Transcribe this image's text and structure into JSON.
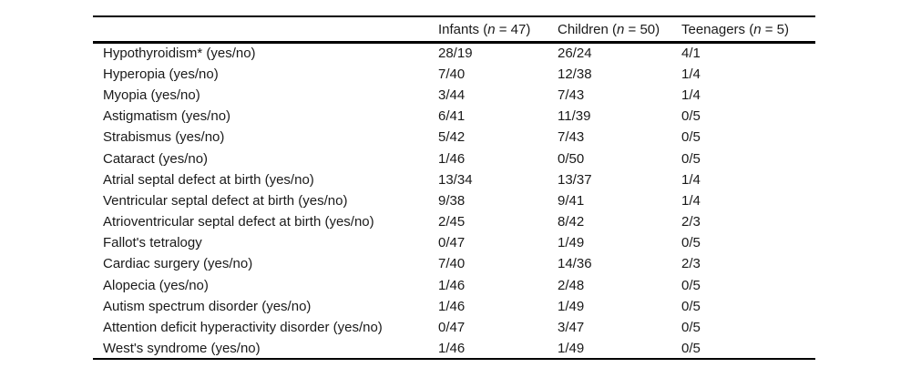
{
  "table": {
    "header": [
      {
        "pre": "Infants (",
        "italic": "n",
        "post": " = 47)"
      },
      {
        "pre": "Children (",
        "italic": "n",
        "post": " = 50)"
      },
      {
        "pre": "Teenagers (",
        "italic": "n",
        "post": " = 5)"
      }
    ],
    "rows": [
      {
        "label": "Hypothyroidism* (yes/no)",
        "infants": "28/19",
        "children": "26/24",
        "teenagers": "4/1"
      },
      {
        "label": "Hyperopia (yes/no)",
        "infants": "7/40",
        "children": "12/38",
        "teenagers": "1/4"
      },
      {
        "label": "Myopia (yes/no)",
        "infants": "3/44",
        "children": "7/43",
        "teenagers": "1/4"
      },
      {
        "label": "Astigmatism (yes/no)",
        "infants": "6/41",
        "children": "11/39",
        "teenagers": "0/5"
      },
      {
        "label": "Strabismus (yes/no)",
        "infants": "5/42",
        "children": "7/43",
        "teenagers": "0/5"
      },
      {
        "label": "Cataract (yes/no)",
        "infants": "1/46",
        "children": "0/50",
        "teenagers": "0/5"
      },
      {
        "label": "Atrial septal defect at birth (yes/no)",
        "infants": "13/34",
        "children": "13/37",
        "teenagers": "1/4"
      },
      {
        "label": "Ventricular septal defect at birth (yes/no)",
        "infants": "9/38",
        "children": "9/41",
        "teenagers": "1/4"
      },
      {
        "label": "Atrioventricular septal defect at birth (yes/no)",
        "infants": "2/45",
        "children": "8/42",
        "teenagers": "2/3"
      },
      {
        "label": "Fallot's tetralogy",
        "infants": "0/47",
        "children": "1/49",
        "teenagers": "0/5"
      },
      {
        "label": "Cardiac surgery (yes/no)",
        "infants": "7/40",
        "children": "14/36",
        "teenagers": "2/3"
      },
      {
        "label": "Alopecia (yes/no)",
        "infants": "1/46",
        "children": "2/48",
        "teenagers": "0/5"
      },
      {
        "label": "Autism spectrum disorder (yes/no)",
        "infants": "1/46",
        "children": "1/49",
        "teenagers": "0/5"
      },
      {
        "label": "Attention deficit hyperactivity disorder (yes/no)",
        "infants": "0/47",
        "children": "3/47",
        "teenagers": "0/5"
      },
      {
        "label": "West's syndrome (yes/no)",
        "infants": "1/46",
        "children": "1/49",
        "teenagers": "0/5"
      }
    ],
    "colors": {
      "rule": "#000000",
      "text": "#1a1a1a",
      "background": "#ffffff"
    }
  }
}
